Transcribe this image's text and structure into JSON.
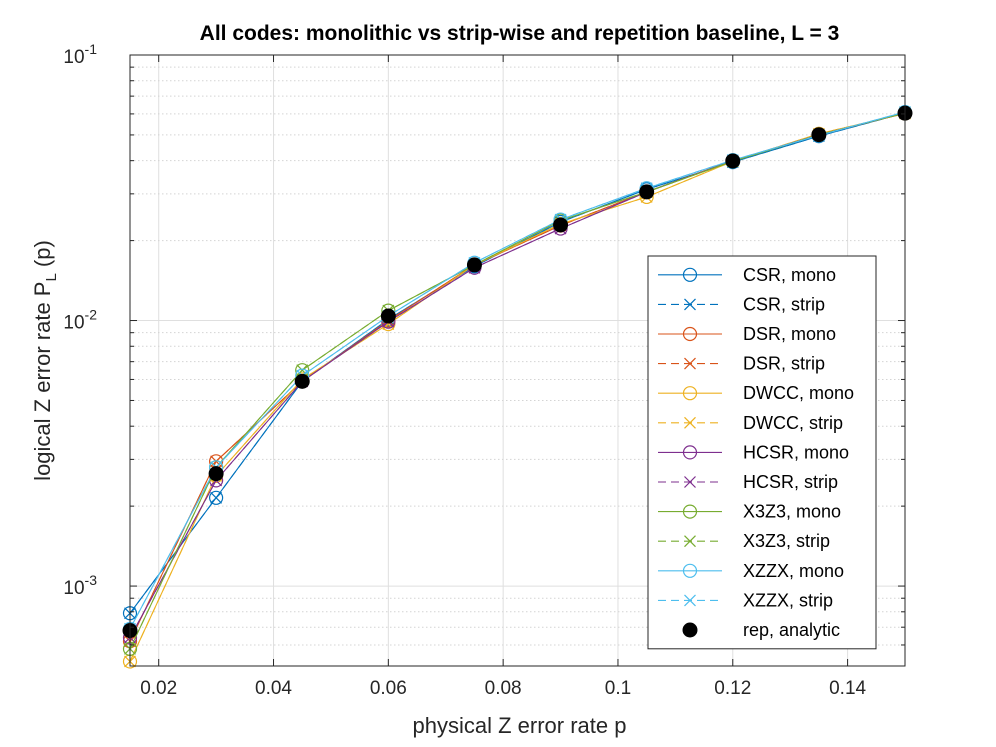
{
  "chart_data": {
    "type": "line",
    "title": "All codes: monolithic vs strip-wise and repetition baseline, L = 3",
    "xlabel": "physical Z error rate p",
    "ylabel_main": "logical Z error rate P",
    "ylabel_sub": "L",
    "ylabel_tail": " (p)",
    "xlim": [
      0.015,
      0.15
    ],
    "ylim": [
      0.0005,
      0.1
    ],
    "yscale": "log",
    "grid": true,
    "legend_position": "lower-right",
    "x_ticks": [
      0.02,
      0.04,
      0.06,
      0.08,
      0.1,
      0.12,
      0.14
    ],
    "x_tick_labels": [
      "0.02",
      "0.04",
      "0.06",
      "0.08",
      "0.1",
      "0.12",
      "0.14"
    ],
    "y_ticks": [
      {
        "value": 0.001,
        "base": "10",
        "exp": "-3"
      },
      {
        "value": 0.01,
        "base": "10",
        "exp": "-2"
      },
      {
        "value": 0.1,
        "base": "10",
        "exp": "-1"
      }
    ],
    "x": [
      0.015,
      0.03,
      0.045,
      0.06,
      0.075,
      0.09,
      0.105,
      0.12,
      0.135,
      0.15
    ],
    "series": [
      {
        "name": "CSR, mono",
        "color": "#0072BD",
        "marker": "circle",
        "dash": false,
        "values": [
          0.00079,
          0.00215,
          0.0059,
          0.0101,
          0.016,
          0.0235,
          0.0312,
          0.0395,
          0.0495,
          0.0605
        ]
      },
      {
        "name": "CSR, strip",
        "color": "#0072BD",
        "marker": "x",
        "dash": true,
        "values": [
          0.00079,
          0.00215,
          0.0059,
          0.0101,
          0.016,
          0.0235,
          0.0312,
          0.0395,
          0.0495,
          0.0605
        ]
      },
      {
        "name": "DSR, mono",
        "color": "#D95319",
        "marker": "circle",
        "dash": false,
        "values": [
          0.00062,
          0.00295,
          0.0059,
          0.01,
          0.0162,
          0.0228,
          0.0305,
          0.04,
          0.05,
          0.0605
        ]
      },
      {
        "name": "DSR, strip",
        "color": "#D95319",
        "marker": "x",
        "dash": true,
        "values": [
          0.00062,
          0.00295,
          0.0059,
          0.01,
          0.0162,
          0.0228,
          0.0305,
          0.04,
          0.05,
          0.0605
        ]
      },
      {
        "name": "DWCC, mono",
        "color": "#EDB120",
        "marker": "circle",
        "dash": false,
        "values": [
          0.00052,
          0.0026,
          0.006,
          0.0097,
          0.0162,
          0.0231,
          0.0292,
          0.0398,
          0.0505,
          0.0602
        ]
      },
      {
        "name": "DWCC, strip",
        "color": "#EDB120",
        "marker": "x",
        "dash": true,
        "values": [
          0.00052,
          0.0026,
          0.006,
          0.0097,
          0.0162,
          0.0231,
          0.0292,
          0.0398,
          0.0505,
          0.0602
        ]
      },
      {
        "name": "HCSR, mono",
        "color": "#7E2F8E",
        "marker": "circle",
        "dash": false,
        "values": [
          0.00064,
          0.0025,
          0.0059,
          0.0099,
          0.0158,
          0.0222,
          0.0305,
          0.04,
          0.05,
          0.0605
        ]
      },
      {
        "name": "HCSR, strip",
        "color": "#7E2F8E",
        "marker": "x",
        "dash": true,
        "values": [
          0.00064,
          0.0025,
          0.0059,
          0.0099,
          0.0158,
          0.0222,
          0.0305,
          0.04,
          0.05,
          0.0605
        ]
      },
      {
        "name": "X3Z3, mono",
        "color": "#77AC30",
        "marker": "circle",
        "dash": false,
        "values": [
          0.00058,
          0.0028,
          0.0065,
          0.0109,
          0.0162,
          0.0238,
          0.0305,
          0.0398,
          0.05,
          0.0605
        ]
      },
      {
        "name": "X3Z3, strip",
        "color": "#77AC30",
        "marker": "x",
        "dash": true,
        "values": [
          0.00058,
          0.0028,
          0.0065,
          0.0109,
          0.0162,
          0.0238,
          0.0305,
          0.0398,
          0.05,
          0.0605
        ]
      },
      {
        "name": "XZZX, mono",
        "color": "#4DBEEE",
        "marker": "circle",
        "dash": false,
        "values": [
          0.00069,
          0.0028,
          0.0062,
          0.0104,
          0.0165,
          0.024,
          0.0315,
          0.0402,
          0.0498,
          0.061
        ]
      },
      {
        "name": "XZZX, strip",
        "color": "#4DBEEE",
        "marker": "x",
        "dash": true,
        "values": [
          0.00069,
          0.0028,
          0.0062,
          0.0104,
          0.0165,
          0.024,
          0.0315,
          0.0402,
          0.0498,
          0.061
        ]
      },
      {
        "name": "rep, analytic",
        "color": "#000000",
        "marker": "dot",
        "dash": false,
        "line": false,
        "values": [
          0.00068,
          0.00265,
          0.0059,
          0.0104,
          0.0162,
          0.0229,
          0.0305,
          0.0399,
          0.0501,
          0.0604
        ]
      }
    ]
  }
}
